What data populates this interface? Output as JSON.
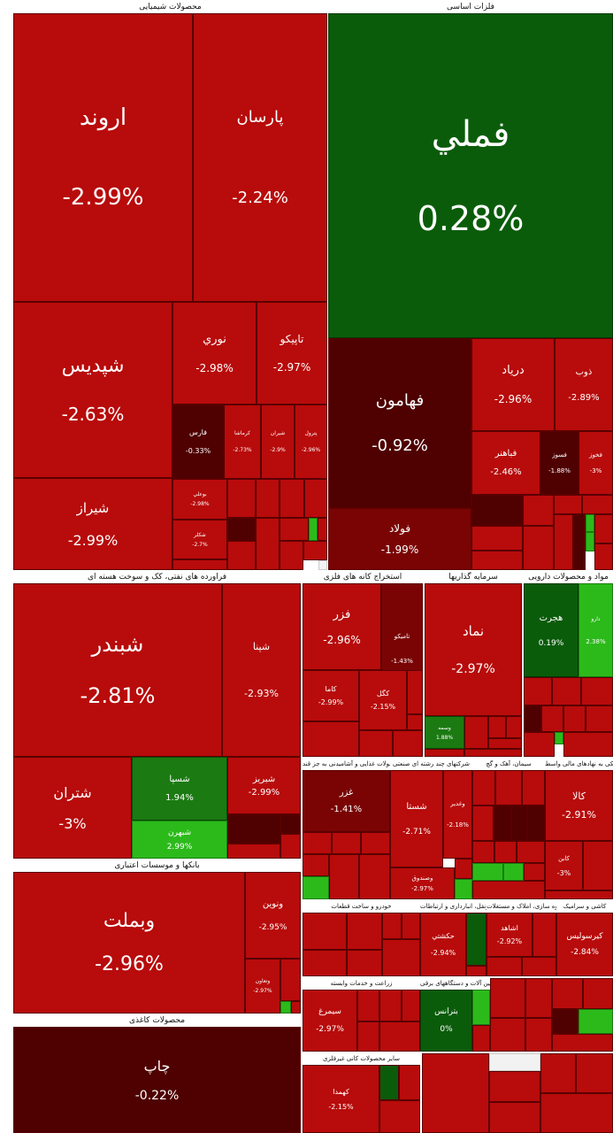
{
  "sectors": {
    "chemical": "محصولات شیمیایی",
    "metals": "فلزات اساسی",
    "refinery": "فراورده های نفتی، کک و سوخت هسته ای",
    "mining": "استخراج کانه های فلزی",
    "investment": "سرمایه گذاریها",
    "pharma": "مواد و محصولات دارویی",
    "banks": "بانکها و موسسات اعتباری",
    "food": "محصولات غذایی و آشامیدنی به جز قند",
    "multi": "شرکتهای چند رشته ای صنعتی",
    "cement": "سیمان، آهک و گچ",
    "financial": "فعالیتهای کمکی به نهادهای مالی واسط",
    "auto": "خودرو و ساخت قطعات",
    "transport": "حمل ونقل، انبارداری و ارتباطات",
    "construction": "انبوه سازی، املاک و مستغلات",
    "tile": "کاشی و سرامیک",
    "agri": "زراعت و خدمات وابسته",
    "electric": "ماشین آلات و دستگاههای برقی",
    "paper": "محصولات کاغذی",
    "nonmetal": "سایر محصولات کانی غیرفلزی"
  },
  "tiles": {
    "arvand": {
      "name": "اروند",
      "change": "-2.99%"
    },
    "parsan": {
      "name": "پارسان",
      "change": "-2.24%"
    },
    "fameli": {
      "name": "فملي",
      "change": "0.28%"
    },
    "shapdis": {
      "name": "شپدیس",
      "change": "-2.63%"
    },
    "nouri": {
      "name": "نوري",
      "change": "-2.98%"
    },
    "tapiko": {
      "name": "تاپيكو",
      "change": "-2.97%"
    },
    "shiraz": {
      "name": "شيراز",
      "change": "-2.99%"
    },
    "fars": {
      "name": "فارس",
      "change": "-0.33%"
    },
    "kermasha": {
      "name": "كرماشا",
      "change": "-2.73%"
    },
    "shiran": {
      "name": "شيران",
      "change": "-2.9%"
    },
    "pardol": {
      "name": "پترول",
      "change": "-2.96%"
    },
    "boali": {
      "name": "بوعلي",
      "change": "-2.98%"
    },
    "shakham": {
      "name": "شكلر",
      "change": "-2.7%"
    },
    "fahamoon": {
      "name": "فهامون",
      "change": "-0.92%"
    },
    "foolad": {
      "name": "فولاد",
      "change": "-1.99%"
    },
    "daryad": {
      "name": "درياد",
      "change": "-2.96%"
    },
    "zob": {
      "name": "ذوب",
      "change": "-2.89%"
    },
    "fabahar": {
      "name": "فباهنر",
      "change": "-2.46%"
    },
    "fasoz": {
      "name": "فسوز",
      "change": "-1.88%"
    },
    "fakhooz": {
      "name": "فخوز",
      "change": "-3%"
    },
    "shabandar": {
      "name": "شبندر",
      "change": "-2.81%"
    },
    "shapna": {
      "name": "شپنا",
      "change": "-2.93%"
    },
    "shetran": {
      "name": "شتران",
      "change": "-3%"
    },
    "shesapa": {
      "name": "شسپا",
      "change": "1.94%"
    },
    "shabriz": {
      "name": "شبريز",
      "change": "-2.99%"
    },
    "shebahran": {
      "name": "شبهرن",
      "change": "2.99%"
    },
    "fazar": {
      "name": "فزر",
      "change": "-2.96%"
    },
    "tamiko": {
      "name": "تاميكو",
      "change": "-1.43%"
    },
    "kama": {
      "name": "كاما",
      "change": "-2.99%"
    },
    "kagol": {
      "name": "كگل",
      "change": "-2.15%"
    },
    "nemad": {
      "name": "نماد",
      "change": "-2.97%"
    },
    "vasmeh": {
      "name": "وسمه",
      "change": "1.88%"
    },
    "hejrat": {
      "name": "هجرت",
      "change": "0.19%"
    },
    "daroo": {
      "name": "دارو",
      "change": "2.38%"
    },
    "vabemellat": {
      "name": "وبملت",
      "change": "-2.96%"
    },
    "vaoyan": {
      "name": "ونوين",
      "change": "-2.95%"
    },
    "ghazar": {
      "name": "غزر",
      "change": "-1.41%"
    },
    "shasta": {
      "name": "شستا",
      "change": "-2.71%"
    },
    "vakadir": {
      "name": "وغدير",
      "change": "-2.18%"
    },
    "kala": {
      "name": "كالا",
      "change": "-2.91%"
    },
    "kirasolis": {
      "name": "كيرسوليس",
      "change": "-2.84%"
    },
    "hakashti": {
      "name": "حكشتي",
      "change": "-2.94%"
    },
    "ashahed": {
      "name": "اشاهد",
      "change": "-2.92%"
    },
    "simorgh": {
      "name": "سيمرغ",
      "change": "-2.97%"
    },
    "batrans": {
      "name": "بترانس",
      "change": "0%"
    },
    "chap": {
      "name": "چاپ",
      "change": "-0.22%"
    },
    "kahma": {
      "name": "كهمدا",
      "change": "-2.15%"
    },
    "sadr": {
      "name": "وصندوق",
      "change": "-2.97%"
    },
    "kaban": {
      "name": "كابن",
      "change": "-3%"
    },
    "shoranaz": {
      "name": "وتعاون",
      "change": "-2.97%"
    }
  }
}
